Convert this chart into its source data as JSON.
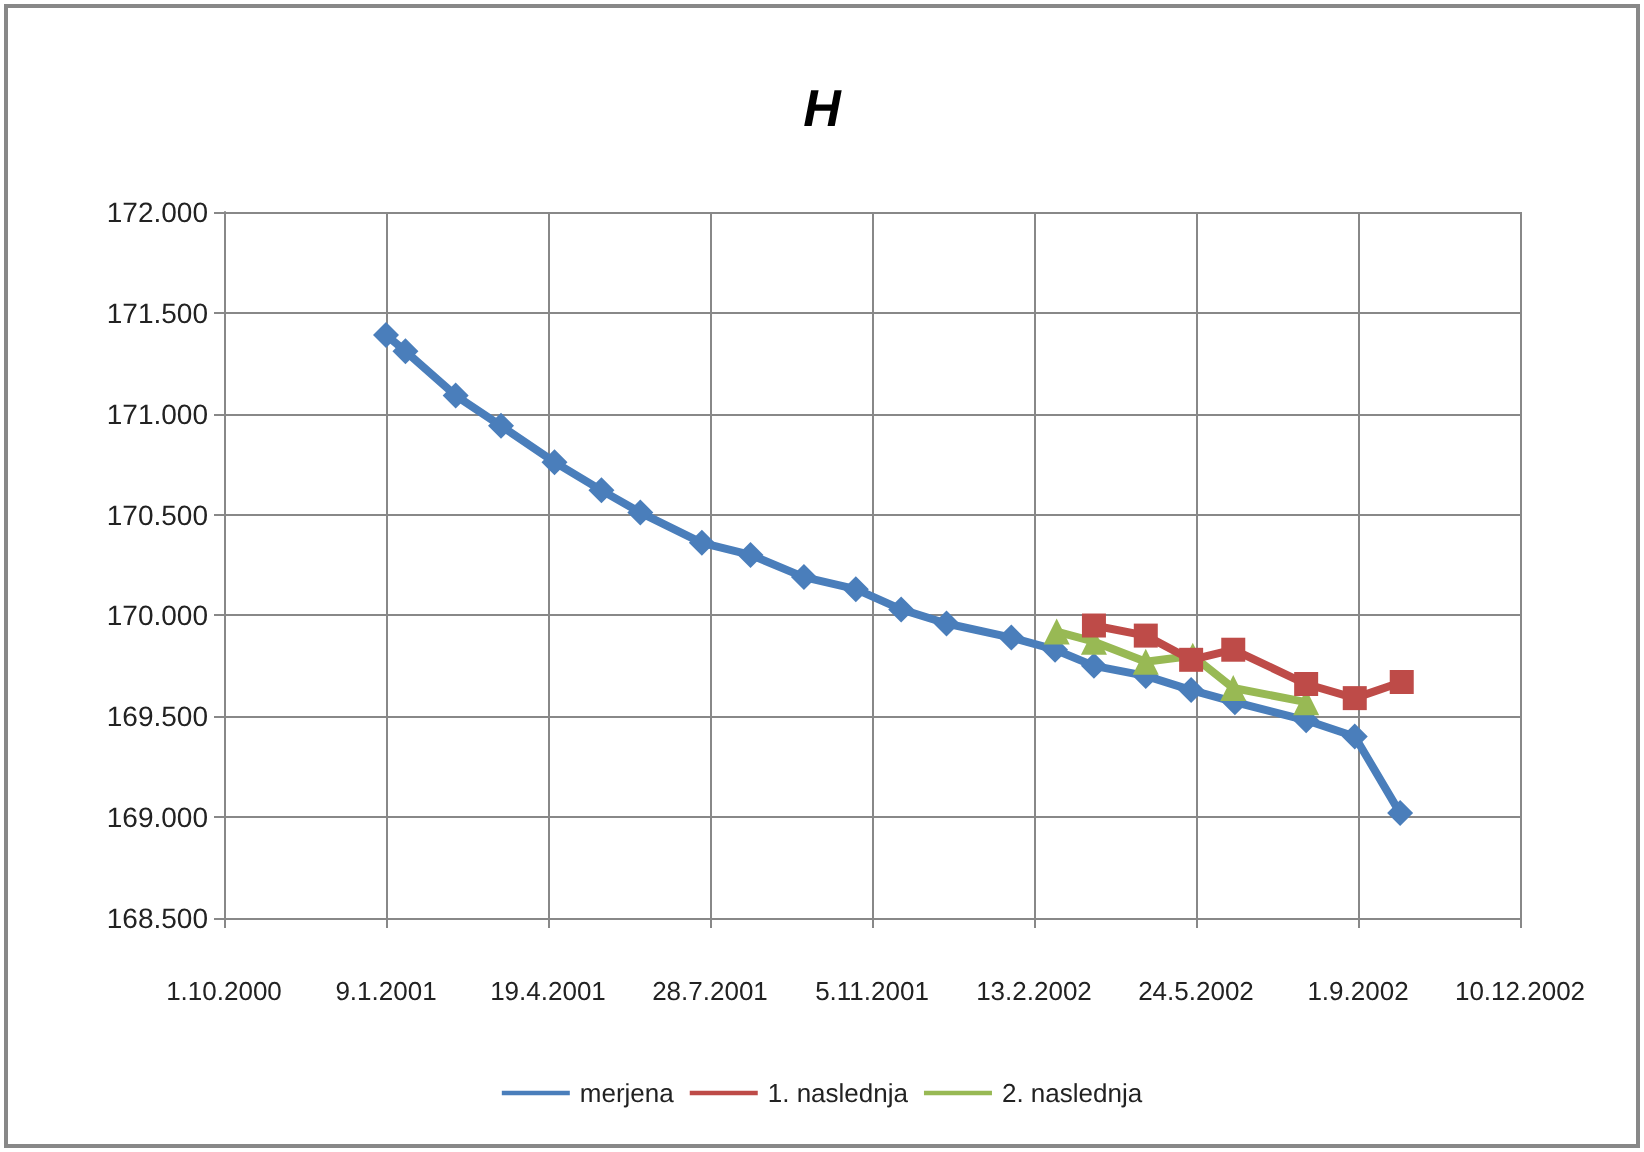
{
  "chart_data": {
    "type": "line",
    "title": "H",
    "xlim": [
      "2000-10-01",
      "2002-12-10"
    ],
    "xticks": [
      {
        "value": "2000-10-01",
        "label": "1.10.2000"
      },
      {
        "value": "2001-01-09",
        "label": "9.1.2001"
      },
      {
        "value": "2001-04-19",
        "label": "19.4.2001"
      },
      {
        "value": "2001-07-28",
        "label": "28.7.2001"
      },
      {
        "value": "2001-11-05",
        "label": "5.11.2001"
      },
      {
        "value": "2002-02-13",
        "label": "13.2.2002"
      },
      {
        "value": "2002-05-24",
        "label": "24.5.2002"
      },
      {
        "value": "2002-09-01",
        "label": "1.9.2002"
      },
      {
        "value": "2002-12-10",
        "label": "10.12.2002"
      }
    ],
    "ylim": [
      168.5,
      172
    ],
    "yticks": [
      {
        "value": 168.5,
        "label": "168.500"
      },
      {
        "value": 169,
        "label": "169.000"
      },
      {
        "value": 169.5,
        "label": "169.500"
      },
      {
        "value": 170,
        "label": "170.000"
      },
      {
        "value": 170.5,
        "label": "170.500"
      },
      {
        "value": 171,
        "label": "171.000"
      },
      {
        "value": 171.5,
        "label": "171.500"
      },
      {
        "value": 172,
        "label": "172.000"
      }
    ],
    "grid": true,
    "legend": "bottom",
    "series": [
      {
        "name": "merjena",
        "color": "#4a7ebb",
        "marker": "diamond",
        "x": [
          "2001-01-09",
          "2001-01-21",
          "2001-02-21",
          "2001-03-21",
          "2001-04-23",
          "2001-05-22",
          "2001-06-15",
          "2001-07-23",
          "2001-08-22",
          "2001-09-24",
          "2001-10-26",
          "2001-11-23",
          "2001-12-21",
          "2002-01-30",
          "2002-02-26",
          "2002-03-22",
          "2002-04-23",
          "2002-05-21",
          "2002-06-17",
          "2002-07-31",
          "2002-08-30",
          "2002-09-27"
        ],
        "values": [
          171.39,
          171.31,
          171.09,
          170.94,
          170.76,
          170.62,
          170.51,
          170.36,
          170.3,
          170.19,
          170.13,
          170.03,
          169.96,
          169.89,
          169.83,
          169.75,
          169.7,
          169.63,
          169.57,
          169.48,
          169.4,
          169.02
        ]
      },
      {
        "name": "1. naslednja",
        "color": "#be4b48",
        "marker": "square",
        "x": [
          "2002-03-22",
          "2002-04-23",
          "2002-05-21",
          "2002-06-16",
          "2002-07-31",
          "2002-08-30",
          "2002-09-28"
        ],
        "values": [
          169.95,
          169.9,
          169.78,
          169.83,
          169.66,
          169.59,
          169.67
        ]
      },
      {
        "name": "2. naslednja",
        "color": "#98b954",
        "marker": "triangle",
        "x": [
          "2002-02-27",
          "2002-03-22",
          "2002-04-23",
          "2002-05-22",
          "2002-06-16",
          "2002-07-31"
        ],
        "values": [
          169.92,
          169.87,
          169.77,
          169.8,
          169.64,
          169.57
        ]
      }
    ]
  }
}
